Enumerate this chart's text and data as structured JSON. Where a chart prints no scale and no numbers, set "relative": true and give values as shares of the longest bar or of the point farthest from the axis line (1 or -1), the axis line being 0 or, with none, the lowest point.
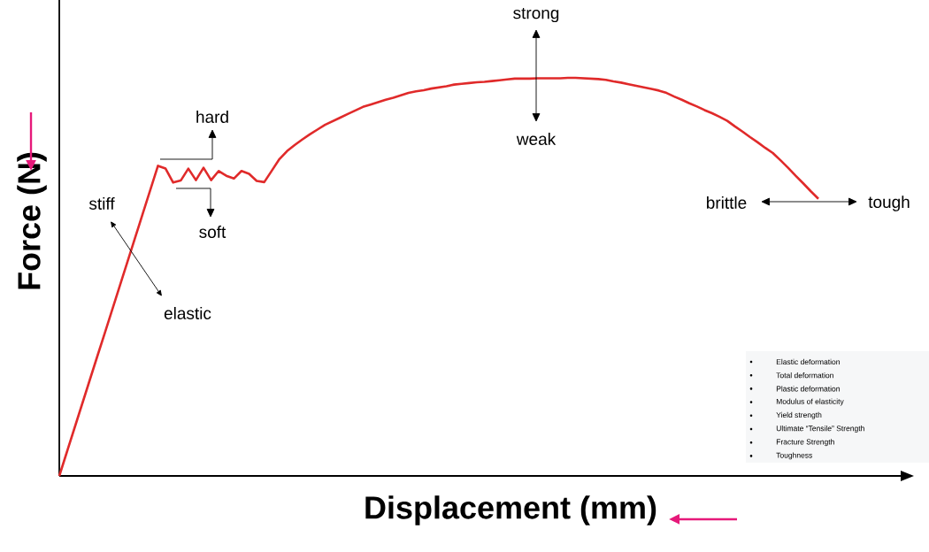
{
  "chart_data": {
    "type": "line",
    "relative": true,
    "xlabel": "Displacement (mm)",
    "ylabel": "Force (N)",
    "color": "#e02a2a",
    "marker": "none",
    "line_style": "solid",
    "tick_labels": false,
    "categories": [
      null,
      null,
      null,
      null,
      null,
      null,
      null,
      null,
      null,
      null,
      null,
      null,
      null,
      null,
      null,
      null,
      null,
      null,
      null,
      null,
      null,
      null,
      null,
      null,
      null,
      null,
      null,
      null,
      null,
      null,
      null,
      null,
      null,
      null,
      null,
      null,
      null,
      null,
      null,
      null,
      null,
      null,
      null,
      null,
      null,
      null,
      null,
      null,
      null,
      null,
      null,
      null,
      null,
      null,
      null,
      null,
      null,
      null,
      null,
      null,
      null,
      null,
      null,
      null,
      null,
      null,
      null,
      null,
      null,
      null,
      null,
      null,
      null,
      null,
      null,
      null,
      null,
      null,
      null,
      null,
      null,
      null,
      null,
      null,
      null,
      null,
      null,
      null,
      null,
      null,
      null,
      null,
      null,
      null,
      null,
      null,
      null,
      null,
      null,
      null,
      null
    ],
    "values": [
      0,
      0.06,
      0.12,
      0.18,
      0.24,
      0.3,
      0.359,
      0.419,
      0.479,
      0.539,
      0.599,
      0.659,
      0.719,
      0.779,
      0.772,
      0.737,
      0.742,
      0.772,
      0.743,
      0.774,
      0.743,
      0.766,
      0.754,
      0.747,
      0.766,
      0.759,
      0.741,
      0.738,
      0.767,
      0.796,
      0.816,
      0.831,
      0.845,
      0.858,
      0.87,
      0.882,
      0.891,
      0.9,
      0.909,
      0.918,
      0.927,
      0.933,
      0.939,
      0.945,
      0.95,
      0.956,
      0.962,
      0.966,
      0.969,
      0.973,
      0.976,
      0.979,
      0.983,
      0.985,
      0.987,
      0.989,
      0.99,
      0.992,
      0.994,
      0.996,
      0.998,
      0.998,
      0.998,
      0.999,
      0.999,
      0.999,
      0.999,
      1.0,
      1.0,
      0.999,
      0.998,
      0.997,
      0.995,
      0.991,
      0.988,
      0.984,
      0.98,
      0.976,
      0.972,
      0.968,
      0.962,
      0.953,
      0.945,
      0.936,
      0.928,
      0.919,
      0.911,
      0.902,
      0.892,
      0.878,
      0.865,
      0.851,
      0.838,
      0.824,
      0.811,
      0.793,
      0.774,
      0.754,
      0.735,
      0.715,
      0.696
    ],
    "annotations": [
      "stiff",
      "elastic",
      "hard",
      "soft",
      "strong",
      "weak",
      "brittle",
      "tough",
      "Elastic deformation",
      "Total deformation",
      "Plastic deformation",
      "Modulus of elasticity",
      "Yield strength",
      "Ultimate “Tensile” Strength",
      "Fracture Strength",
      "Toughness"
    ]
  }
}
